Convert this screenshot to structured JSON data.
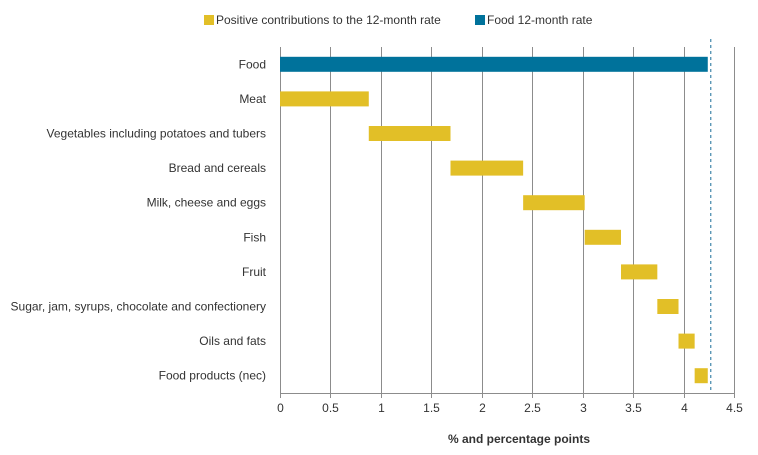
{
  "chart_data": {
    "type": "bar",
    "subtype": "waterfall-horizontal",
    "title": "",
    "xlabel": "% and percentage points",
    "ylabel": "",
    "xlim": [
      0,
      4.5
    ],
    "xticks": [
      0,
      0.5,
      1,
      1.5,
      2,
      2.5,
      3,
      3.5,
      4,
      4.5
    ],
    "xtick_labels": [
      "0",
      "0.5",
      "1",
      "1.5",
      "2",
      "2.5",
      "3",
      "3.5",
      "4",
      "4.5"
    ],
    "grid": "vertical",
    "legend_position": "top",
    "reference_line": {
      "value": 4.27,
      "style": "dashed",
      "color": "#1a6e99"
    },
    "series": [
      {
        "name": "Positive contributions to the 12-month rate",
        "color": "#e2bf27"
      },
      {
        "name": "Food 12-month rate",
        "color": "#00729b"
      }
    ],
    "categories": [
      "Food",
      "Meat",
      "Vegetables including potatoes and tubers",
      "Bread and cereals",
      "Milk, cheese and eggs",
      "Fish",
      "Fruit",
      "Sugar, jam, syrups, chocolate and confectionery",
      "Oils and fats",
      "Food products (nec)"
    ],
    "bars": [
      {
        "category": "Food",
        "series": "Food 12-month rate",
        "start": 0,
        "end": 4.24
      },
      {
        "category": "Meat",
        "series": "Positive contributions to the 12-month rate",
        "start": 0,
        "end": 0.88
      },
      {
        "category": "Vegetables including potatoes and tubers",
        "series": "Positive contributions to the 12-month rate",
        "start": 0.88,
        "end": 1.69
      },
      {
        "category": "Bread and cereals",
        "series": "Positive contributions to the 12-month rate",
        "start": 1.69,
        "end": 2.41
      },
      {
        "category": "Milk, cheese and eggs",
        "series": "Positive contributions to the 12-month rate",
        "start": 2.41,
        "end": 3.02
      },
      {
        "category": "Fish",
        "series": "Positive contributions to the 12-month rate",
        "start": 3.02,
        "end": 3.38
      },
      {
        "category": "Fruit",
        "series": "Positive contributions to the 12-month rate",
        "start": 3.38,
        "end": 3.74
      },
      {
        "category": "Sugar, jam, syrups, chocolate and confectionery",
        "series": "Positive contributions to the 12-month rate",
        "start": 3.74,
        "end": 3.95
      },
      {
        "category": "Oils and fats",
        "series": "Positive contributions to the 12-month rate",
        "start": 3.95,
        "end": 4.11
      },
      {
        "category": "Food products (nec)",
        "series": "Positive contributions to the 12-month rate",
        "start": 4.11,
        "end": 4.24
      }
    ]
  }
}
